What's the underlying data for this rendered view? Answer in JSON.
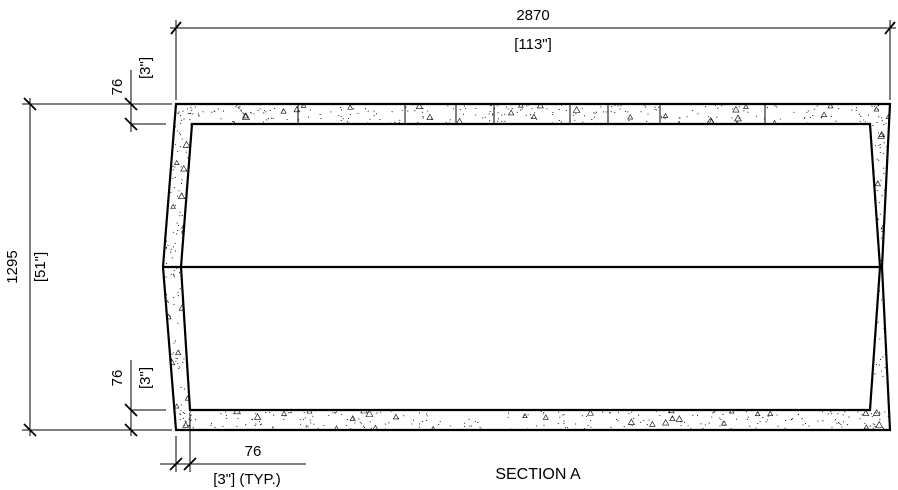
{
  "drawing": {
    "title": "SECTION A",
    "overall_width": {
      "value": "2870",
      "imperial": "[113\"]"
    },
    "overall_height": {
      "value": "1295",
      "imperial": "[51\"]"
    },
    "top_wall_thickness": {
      "value": "76",
      "imperial": "[3\"]"
    },
    "bottom_wall_thickness": {
      "value": "76",
      "imperial": "[3\"]"
    },
    "side_wall_thickness": {
      "value": "76",
      "imperial": "[3\"] (TYP.)"
    }
  }
}
